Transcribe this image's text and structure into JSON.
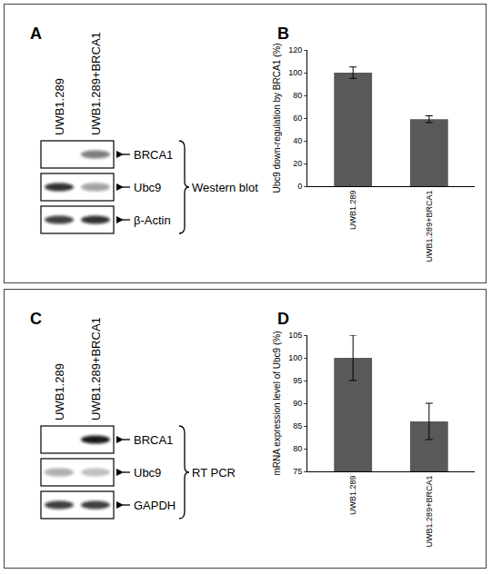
{
  "blots": [
    {
      "panel": "A",
      "lanes": [
        "UWB1.289",
        "UWB1.289+BRCA1"
      ],
      "rows": [
        "BRCA1",
        "Ubc9",
        "β-Actin"
      ],
      "method": "Western blot"
    },
    {
      "panel": "C",
      "lanes": [
        "UWB1.289",
        "UWB1.289+BRCA1"
      ],
      "rows": [
        "BRCA1",
        "Ubc9",
        "GAPDH"
      ],
      "method": "RT PCR"
    }
  ],
  "chart_data": [
    {
      "panel": "B",
      "type": "bar",
      "categories": [
        "UWB1.289",
        "UWB1.289+BRCA1"
      ],
      "values": [
        100,
        59
      ],
      "errors": [
        5,
        3
      ],
      "color": "#595959",
      "y_label": "Ubc9 down-regulation by BRCA1 (%)",
      "ylim": [
        0,
        120
      ],
      "yticks": [
        0,
        20,
        40,
        60,
        80,
        100,
        120
      ],
      "grid": false
    },
    {
      "panel": "D",
      "type": "bar",
      "categories": [
        "UWB1.289",
        "UWB1.289+BRCA1"
      ],
      "values": [
        100,
        86
      ],
      "errors": [
        5,
        4
      ],
      "color": "#595959",
      "y_label": "mRNA expression level of Ubc9 (%)",
      "ylim": [
        75,
        105
      ],
      "yticks": [
        75,
        80,
        85,
        90,
        95,
        100,
        105
      ],
      "grid": false
    }
  ]
}
